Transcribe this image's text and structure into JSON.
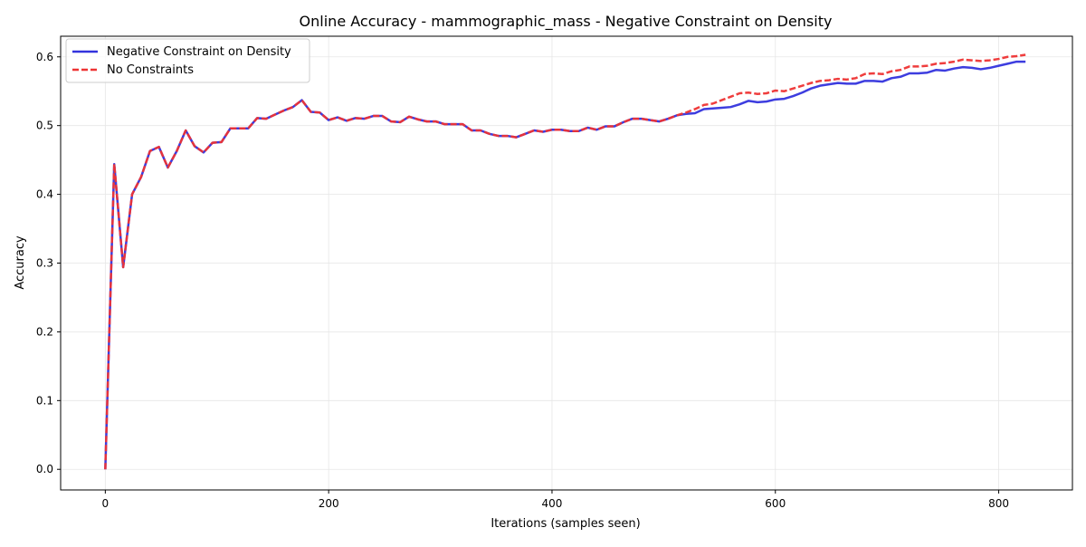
{
  "chart_data": {
    "type": "line",
    "title": "Online Accuracy - mammographic_mass - Negative Constraint on Density",
    "xlabel": "Iterations (samples seen)",
    "ylabel": "Accuracy",
    "xlim": [
      -40,
      866
    ],
    "ylim": [
      -0.03,
      0.63
    ],
    "xticks": [
      0,
      200,
      400,
      600,
      800
    ],
    "yticks": [
      0.0,
      0.1,
      0.2,
      0.3,
      0.4,
      0.5,
      0.6
    ],
    "grid": true,
    "legend_position": "top-left",
    "x": [
      0,
      8,
      16,
      24,
      32,
      40,
      48,
      56,
      64,
      72,
      80,
      88,
      96,
      104,
      112,
      120,
      128,
      136,
      144,
      152,
      160,
      168,
      176,
      184,
      192,
      200,
      208,
      216,
      224,
      232,
      240,
      248,
      256,
      264,
      272,
      280,
      288,
      296,
      304,
      312,
      320,
      328,
      336,
      344,
      352,
      360,
      368,
      376,
      384,
      392,
      400,
      408,
      416,
      424,
      432,
      440,
      448,
      456,
      464,
      472,
      480,
      488,
      496,
      504,
      512,
      520,
      528,
      536,
      544,
      552,
      560,
      568,
      576,
      584,
      592,
      600,
      608,
      616,
      624,
      632,
      640,
      648,
      656,
      664,
      672,
      680,
      688,
      696,
      704,
      712,
      720,
      728,
      736,
      744,
      752,
      760,
      768,
      776,
      784,
      792,
      800,
      808,
      816,
      824
    ],
    "series": [
      {
        "name": "Negative Constraint on Density",
        "color": "#3333dd",
        "style": "solid",
        "values": [
          0.0,
          0.444,
          0.294,
          0.4,
          0.425,
          0.463,
          0.469,
          0.439,
          0.463,
          0.493,
          0.47,
          0.461,
          0.475,
          0.476,
          0.496,
          0.496,
          0.496,
          0.511,
          0.51,
          0.516,
          0.522,
          0.527,
          0.537,
          0.52,
          0.519,
          0.508,
          0.512,
          0.507,
          0.511,
          0.51,
          0.514,
          0.514,
          0.506,
          0.505,
          0.513,
          0.509,
          0.506,
          0.506,
          0.502,
          0.502,
          0.502,
          0.493,
          0.493,
          0.488,
          0.485,
          0.485,
          0.483,
          0.488,
          0.493,
          0.491,
          0.494,
          0.494,
          0.492,
          0.492,
          0.497,
          0.494,
          0.499,
          0.499,
          0.505,
          0.51,
          0.51,
          0.508,
          0.506,
          0.51,
          0.515,
          0.517,
          0.518,
          0.524,
          0.525,
          0.526,
          0.527,
          0.531,
          0.536,
          0.534,
          0.535,
          0.538,
          0.539,
          0.543,
          0.548,
          0.554,
          0.558,
          0.56,
          0.562,
          0.561,
          0.561,
          0.565,
          0.565,
          0.564,
          0.569,
          0.571,
          0.576,
          0.576,
          0.577,
          0.581,
          0.58,
          0.583,
          0.585,
          0.584,
          0.582,
          0.584,
          0.587,
          0.59,
          0.593,
          0.593
        ]
      },
      {
        "name": "No Constraints",
        "color": "#ee3333",
        "style": "dashed",
        "values": [
          0.0,
          0.444,
          0.294,
          0.4,
          0.425,
          0.463,
          0.469,
          0.439,
          0.463,
          0.493,
          0.47,
          0.461,
          0.475,
          0.476,
          0.496,
          0.496,
          0.496,
          0.511,
          0.51,
          0.516,
          0.522,
          0.527,
          0.537,
          0.52,
          0.519,
          0.508,
          0.512,
          0.507,
          0.511,
          0.51,
          0.514,
          0.514,
          0.506,
          0.505,
          0.513,
          0.509,
          0.506,
          0.506,
          0.502,
          0.502,
          0.502,
          0.493,
          0.493,
          0.488,
          0.485,
          0.485,
          0.483,
          0.488,
          0.493,
          0.491,
          0.494,
          0.494,
          0.492,
          0.492,
          0.497,
          0.494,
          0.499,
          0.499,
          0.505,
          0.51,
          0.51,
          0.508,
          0.506,
          0.51,
          0.515,
          0.519,
          0.524,
          0.53,
          0.532,
          0.537,
          0.542,
          0.547,
          0.548,
          0.546,
          0.547,
          0.551,
          0.55,
          0.554,
          0.558,
          0.562,
          0.565,
          0.566,
          0.568,
          0.567,
          0.569,
          0.575,
          0.576,
          0.575,
          0.579,
          0.581,
          0.586,
          0.586,
          0.587,
          0.59,
          0.591,
          0.593,
          0.596,
          0.595,
          0.594,
          0.595,
          0.597,
          0.6,
          0.601,
          0.603
        ]
      }
    ]
  }
}
